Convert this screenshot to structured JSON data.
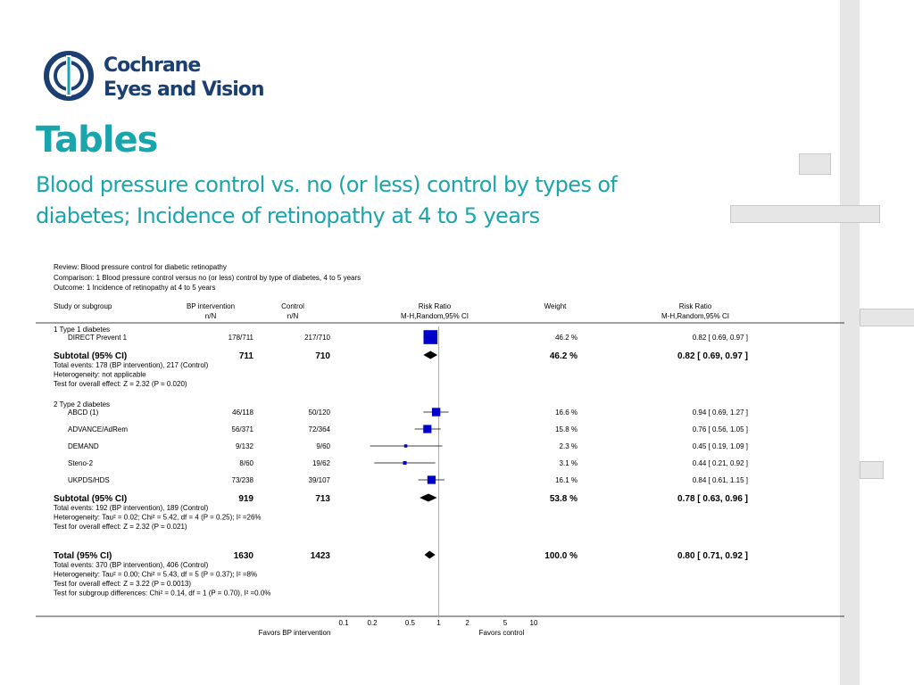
{
  "brand": {
    "line1": "Cochrane",
    "line2": "Eyes and Vision"
  },
  "slide": {
    "title": "Tables",
    "subtitle": "Blood pressure control vs. no (or less) control by types of diabetes; Incidence of retinopathy at 4 to 5 years"
  },
  "colors": {
    "accent": "#1aa5ad",
    "brand": "#1b3f72",
    "marker": "#0000cc"
  },
  "chart_data": {
    "type": "forest",
    "header": {
      "review": "Review:   Blood pressure control for diabetic retinopathy",
      "comparison": "Comparison:   1 Blood pressure control versus no (or less) control by type of diabetes, 4 to 5 years",
      "outcome": "Outcome:   1 Incidence of retinopathy at 4 to 5 years"
    },
    "columns": {
      "study": "Study or subgroup",
      "bp1": "BP intervention",
      "bp2": "n/N",
      "ctrl1": "Control",
      "ctrl2": "n/N",
      "rr1": "Risk Ratio",
      "rr2": "M-H,Random,95% CI",
      "weight": "Weight",
      "rrci1": "Risk Ratio",
      "rrci2": "M-H,Random,95% CI"
    },
    "x_scale": "log",
    "xlim": [
      0.1,
      10
    ],
    "x_ticks": [
      "0.1",
      "0.2",
      "0.5",
      "1",
      "2",
      "5",
      "10"
    ],
    "favours_left": "Favors BP intervention",
    "favours_right": "Favors control",
    "groups": [
      {
        "label": "1 Type 1 diabetes",
        "studies": [
          {
            "name": "DIRECT Prevent 1",
            "bp": "178/711",
            "ctrl": "217/710",
            "rr": 0.82,
            "lo": 0.69,
            "hi": 0.97,
            "weight": "46.2 %",
            "ci": "0.82 [ 0.69, 0.97 ]"
          }
        ],
        "subtotal": {
          "label": "Subtotal (95% CI)",
          "bp": "711",
          "ctrl": "710",
          "rr": 0.82,
          "lo": 0.69,
          "hi": 0.97,
          "weight": "46.2 %",
          "ci": "0.82 [ 0.69, 0.97 ]"
        },
        "notes": [
          "Total events: 178 (BP intervention), 217 (Control)",
          "Heterogeneity: not applicable",
          "Test for overall effect: Z = 2.32 (P = 0.020)"
        ]
      },
      {
        "label": "2 Type 2 diabetes",
        "studies": [
          {
            "name": "ABCD (1)",
            "bp": "46/118",
            "ctrl": "50/120",
            "rr": 0.94,
            "lo": 0.69,
            "hi": 1.27,
            "weight": "16.6 %",
            "ci": "0.94 [ 0.69, 1.27 ]"
          },
          {
            "name": "ADVANCE/AdRem",
            "bp": "56/371",
            "ctrl": "72/364",
            "rr": 0.76,
            "lo": 0.56,
            "hi": 1.05,
            "weight": "15.8 %",
            "ci": "0.76 [ 0.56, 1.05 ]"
          },
          {
            "name": "DEMAND",
            "bp": "9/132",
            "ctrl": "9/60",
            "rr": 0.45,
            "lo": 0.19,
            "hi": 1.09,
            "weight": "2.3 %",
            "ci": "0.45 [ 0.19, 1.09 ]"
          },
          {
            "name": "Steno-2",
            "bp": "8/60",
            "ctrl": "19/62",
            "rr": 0.44,
            "lo": 0.21,
            "hi": 0.92,
            "weight": "3.1 %",
            "ci": "0.44 [ 0.21, 0.92 ]"
          },
          {
            "name": "UKPDS/HDS",
            "bp": "73/238",
            "ctrl": "39/107",
            "rr": 0.84,
            "lo": 0.61,
            "hi": 1.15,
            "weight": "16.1 %",
            "ci": "0.84 [ 0.61, 1.15 ]"
          }
        ],
        "subtotal": {
          "label": "Subtotal (95% CI)",
          "bp": "919",
          "ctrl": "713",
          "rr": 0.78,
          "lo": 0.63,
          "hi": 0.96,
          "weight": "53.8 %",
          "ci": "0.78 [ 0.63, 0.96 ]"
        },
        "notes": [
          "Total events: 192 (BP intervention), 189 (Control)",
          "Heterogeneity: Tau² = 0.02; Chi² = 5.42, df = 4 (P = 0.25); I² =26%",
          "Test for overall effect: Z = 2.32 (P = 0.021)"
        ]
      }
    ],
    "total": {
      "label": "Total (95% CI)",
      "bp": "1630",
      "ctrl": "1423",
      "rr": 0.8,
      "lo": 0.71,
      "hi": 0.92,
      "weight": "100.0 %",
      "ci": "0.80 [ 0.71, 0.92 ]"
    },
    "total_notes": [
      "Total events: 370 (BP intervention), 406 (Control)",
      "Heterogeneity: Tau² = 0.00; Chi² = 5.43, df = 5 (P = 0.37); I² =8%",
      "Test for overall effect: Z = 3.22 (P = 0.0013)",
      "Test for subgroup differences: Chi² = 0.14, df = 1 (P = 0.70), I² =0.0%"
    ]
  }
}
